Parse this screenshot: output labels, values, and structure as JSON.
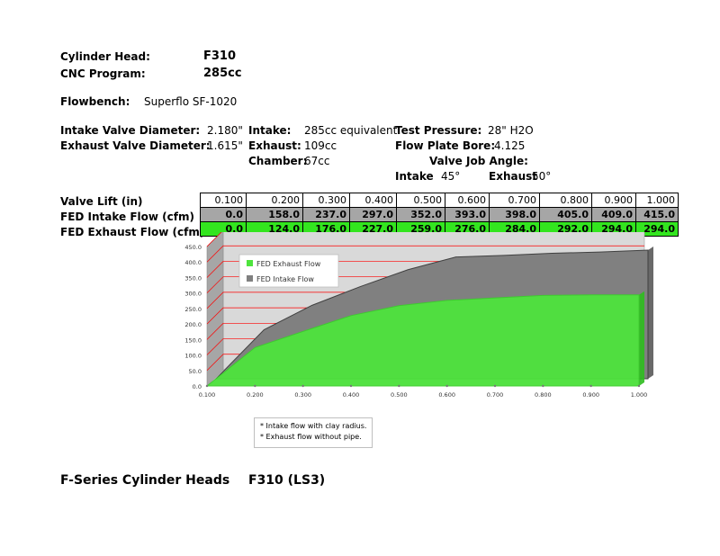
{
  "header": {
    "cylinder_head_label": "Cylinder Head:",
    "cylinder_head_value": "F310",
    "cnc_program_label": "CNC Program:",
    "cnc_program_value": "285cc",
    "flowbench_label": "Flowbench:",
    "flowbench_value": "Superflo SF-1020"
  },
  "specs": {
    "intake_valve_diameter_label": "Intake Valve Diameter:",
    "intake_valve_diameter_value": "2.180\"",
    "exhaust_valve_diameter_label": "Exhaust Valve Diameter:",
    "exhaust_valve_diameter_value": "1.615\"",
    "intake_label": "Intake:",
    "intake_value": "285cc equivalent",
    "exhaust_label": "Exhaust:",
    "exhaust_value": "109cc",
    "chamber_label": "Chamber:",
    "chamber_value": "67cc",
    "test_pressure_label": "Test Pressure:",
    "test_pressure_value": "28\" H2O",
    "flow_plate_bore_label": "Flow Plate Bore:",
    "flow_plate_bore_value": "4.125",
    "valve_job_angle_label": "Valve Job Angle:",
    "vja_intake_label": "Intake",
    "vja_intake_value": "45°",
    "vja_exhaust_label": "Exhaust",
    "vja_exhaust_value": "50°"
  },
  "table": {
    "rows": [
      {
        "label": "Valve Lift (in)",
        "values": [
          "0.100",
          "0.200",
          "0.300",
          "0.400",
          "0.500",
          "0.600",
          "0.700",
          "0.800",
          "0.900",
          "1.000"
        ]
      },
      {
        "label": "FED Intake Flow (cfm)",
        "values": [
          "0.0",
          "158.0",
          "237.0",
          "297.0",
          "352.0",
          "393.0",
          "398.0",
          "405.0",
          "409.0",
          "415.0"
        ]
      },
      {
        "label": "FED Exhaust Flow (cfm)",
        "values": [
          "0.0",
          "124.0",
          "176.0",
          "227.0",
          "259.0",
          "276.0",
          "284.0",
          "292.0",
          "294.0",
          "294.0"
        ]
      }
    ]
  },
  "chart_data": {
    "type": "area",
    "x": [
      0.1,
      0.2,
      0.3,
      0.4,
      0.5,
      0.6,
      0.7,
      0.8,
      0.9,
      1.0
    ],
    "x_tick_labels": [
      "0.100",
      "0.200",
      "0.300",
      "0.400",
      "0.500",
      "0.600",
      "0.700",
      "0.800",
      "0.900",
      "1.000"
    ],
    "y_tick_labels": [
      "0.0",
      "50.0",
      "100.0",
      "150.0",
      "200.0",
      "250.0",
      "300.0",
      "350.0",
      "400.0",
      "450.0"
    ],
    "ylim": [
      0,
      450
    ],
    "xlim": [
      0.1,
      1.0
    ],
    "series": [
      {
        "name": "FED Intake Flow",
        "values": [
          0,
          158,
          237,
          297,
          352,
          393,
          398,
          405,
          409,
          415
        ],
        "color": "#808080"
      },
      {
        "name": "FED Exhaust Flow",
        "values": [
          0,
          124,
          176,
          227,
          259,
          276,
          284,
          292,
          294,
          294
        ],
        "color": "#4ee43d"
      }
    ],
    "legend_position": "top-left",
    "legend": [
      "FED Exhaust Flow",
      "FED Intake Flow"
    ],
    "grid": true,
    "colors": {
      "wall": "#d9d9d9",
      "gridline": "#ff0000",
      "floor": "#bfbfbf"
    }
  },
  "notes": {
    "line1": "* Intake flow with clay radius.",
    "line2": "* Exhaust flow without pipe."
  },
  "footer": {
    "series_title": "F-Series Cylinder Heads",
    "model_title": "F310 (LS3)"
  }
}
